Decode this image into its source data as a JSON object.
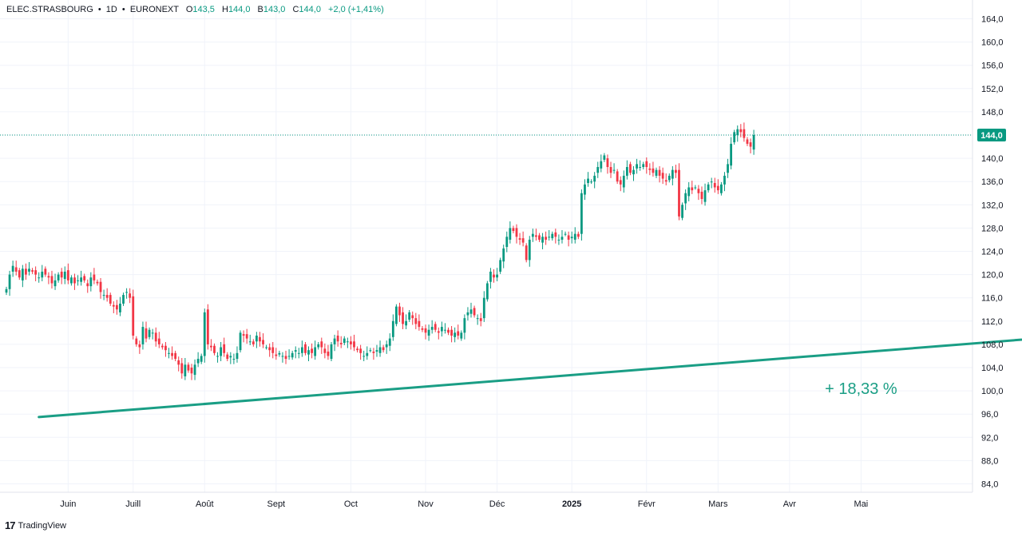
{
  "legend": {
    "symbol": "ELEC.STRASBOURG",
    "interval": "1D",
    "exchange": "EURONEXT",
    "o_label": "O",
    "o_value": "143,5",
    "h_label": "H",
    "h_value": "144,0",
    "l_label": "B",
    "l_value": "143,0",
    "c_label": "C",
    "c_value": "144,0",
    "change": "+2,0 (+1,41%)",
    "sep": "•"
  },
  "footer": {
    "logo": "17",
    "brand": "TradingView"
  },
  "colors": {
    "up": "#089981",
    "down": "#f23645",
    "trend": "#1a9e85",
    "text": "#131722",
    "grid": "#f0f3fa"
  },
  "chart_data": {
    "type": "candlestick",
    "title": "ELEC.STRASBOURG · 1D · EURONEXT",
    "ylim": [
      82,
      166
    ],
    "y_ticks": [
      "84,0",
      "88,0",
      "92,0",
      "96,0",
      "100,0",
      "104,0",
      "108,0",
      "112,0",
      "116,0",
      "120,0",
      "124,0",
      "128,0",
      "132,0",
      "136,0",
      "140,0",
      "144,0",
      "148,0",
      "152,0",
      "156,0",
      "160,0",
      "164,0"
    ],
    "x_ticks": [
      "Juin",
      "Juill",
      "Août",
      "Sept",
      "Oct",
      "Nov",
      "Déc",
      "2025",
      "Févr",
      "Mars",
      "Avr",
      "Mai"
    ],
    "x_tick_days": [
      19,
      39,
      61,
      83,
      106,
      129,
      151,
      174,
      197,
      219,
      241,
      263
    ],
    "last_price": "144,0",
    "last_value": 144.0,
    "closes": [
      117.5,
      120.0,
      121.5,
      120.5,
      119.5,
      121.0,
      120.0,
      121.0,
      120.5,
      120.0,
      119.5,
      120.5,
      120.0,
      119.5,
      118.5,
      119.0,
      120.0,
      119.5,
      120.5,
      119.0,
      119.5,
      118.5,
      119.0,
      119.5,
      119.0,
      118.0,
      119.5,
      119.0,
      118.5,
      117.0,
      116.5,
      116.0,
      115.0,
      114.5,
      114.0,
      115.0,
      116.5,
      117.0,
      116.0,
      109.5,
      108.0,
      107.5,
      111.0,
      109.0,
      110.5,
      110.0,
      108.5,
      108.0,
      107.5,
      107.0,
      106.5,
      106.0,
      105.5,
      104.5,
      103.0,
      104.5,
      103.5,
      103.0,
      104.5,
      105.5,
      106.0,
      113.5,
      108.0,
      107.5,
      106.5,
      106.0,
      107.5,
      106.5,
      105.5,
      106.0,
      105.5,
      106.5,
      110.0,
      109.5,
      109.0,
      108.5,
      108.0,
      109.5,
      108.5,
      108.0,
      107.5,
      107.0,
      106.5,
      106.0,
      106.5,
      106.0,
      105.5,
      106.0,
      106.5,
      107.0,
      106.5,
      107.5,
      106.5,
      107.0,
      106.5,
      107.5,
      108.0,
      107.5,
      106.5,
      106.0,
      108.0,
      109.0,
      108.5,
      108.0,
      109.0,
      108.5,
      108.0,
      107.5,
      107.0,
      106.5,
      106.0,
      106.5,
      107.0,
      106.5,
      107.0,
      107.5,
      107.0,
      108.0,
      109.0,
      112.0,
      114.5,
      113.0,
      111.5,
      112.0,
      113.5,
      112.5,
      111.5,
      111.0,
      110.5,
      110.0,
      110.5,
      111.0,
      110.5,
      110.0,
      111.0,
      110.5,
      110.0,
      109.5,
      110.0,
      109.5,
      110.0,
      112.5,
      113.5,
      114.0,
      113.0,
      112.5,
      112.0,
      116.0,
      118.5,
      120.5,
      119.5,
      120.0,
      122.5,
      124.5,
      126.5,
      128.0,
      127.5,
      126.5,
      126.0,
      125.5,
      122.5,
      126.0,
      127.0,
      126.5,
      126.0,
      126.5,
      126.0,
      126.5,
      127.0,
      126.5,
      126.0,
      126.5,
      127.0,
      126.0,
      126.5,
      127.0,
      126.5,
      134.0,
      135.5,
      136.5,
      136.0,
      137.0,
      138.5,
      139.5,
      140.5,
      138.5,
      137.5,
      138.0,
      136.0,
      135.5,
      137.0,
      138.5,
      137.5,
      138.0,
      139.0,
      138.5,
      139.0,
      138.5,
      138.0,
      137.5,
      138.0,
      137.0,
      136.5,
      136.0,
      137.0,
      138.0,
      137.5,
      130.0,
      132.0,
      134.0,
      135.0,
      134.5,
      135.0,
      134.0,
      133.0,
      134.5,
      135.5,
      136.0,
      135.0,
      134.5,
      135.5,
      137.0,
      139.0,
      142.5,
      144.5,
      145.0,
      144.5,
      143.5,
      142.5,
      142.0,
      144.0
    ],
    "trendline": {
      "start_day": 10,
      "start_value": 95.5,
      "end_day": 385,
      "end_value": 112.0
    },
    "annotation": "+ 18,33 %",
    "annotation_at": {
      "day": 263,
      "value": 100.0
    },
    "grid": false
  }
}
